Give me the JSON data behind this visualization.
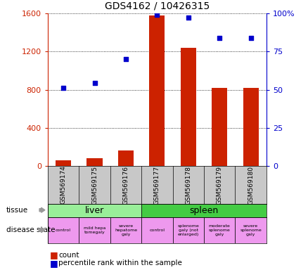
{
  "title": "GDS4162 / 10426315",
  "samples": [
    "GSM569174",
    "GSM569175",
    "GSM569176",
    "GSM569177",
    "GSM569178",
    "GSM569179",
    "GSM569180"
  ],
  "count_values": [
    60,
    80,
    160,
    1580,
    1240,
    820,
    820
  ],
  "percentile_values_pct": [
    51.25,
    54.375,
    70.0,
    99.375,
    97.5,
    83.75,
    83.75
  ],
  "left_ylim": [
    0,
    1600
  ],
  "left_yticks": [
    0,
    400,
    800,
    1200,
    1600
  ],
  "right_ylim": [
    0,
    100
  ],
  "right_yticks": [
    0,
    25,
    50,
    75,
    100
  ],
  "left_tick_color": "#cc2200",
  "right_tick_color": "#0000cc",
  "bar_color": "#cc2200",
  "dot_color": "#0000cc",
  "tissue_color_liver": "#99ee99",
  "tissue_color_spleen": "#44cc44",
  "disease_labels": [
    "control",
    "mild hepa\ntomegaly",
    "severe\nhepatome\ngaly",
    "control",
    "splenome\ngaly (not\nenlarged)",
    "moderate\nsplenome\ngaly",
    "severe\nsplenome\ngaly"
  ],
  "disease_color": "#ee99ee",
  "sample_bg_color": "#c8c8c8",
  "fig_bg": "#ffffff",
  "arrow_color": "#999999"
}
